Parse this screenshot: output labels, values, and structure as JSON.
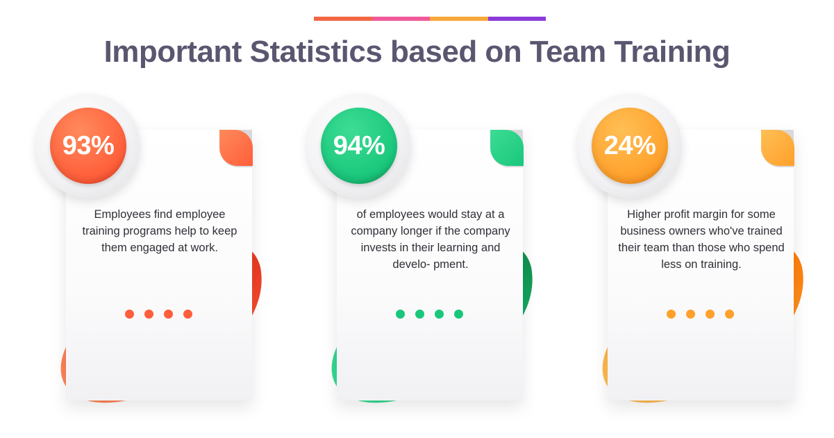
{
  "header": {
    "title": "Important Statistics based on Team Training",
    "bar_colors": [
      "#f26743",
      "#f05a9a",
      "#f7a83a",
      "#8a3bd8"
    ]
  },
  "cards": [
    {
      "percent": "93%",
      "description": "Employees find employee training programs help to keep them engaged at work.",
      "color_main": "#ff5e3a",
      "color_light": "#ff8a5c",
      "color_dark": "#e8351f",
      "dots": 4
    },
    {
      "percent": "94%",
      "description": "of employees would stay at a company longer if the company invests in their learning and develo- pment.",
      "color_main": "#19c77b",
      "color_light": "#3ddc95",
      "color_dark": "#0f8a48",
      "dots": 4
    },
    {
      "percent": "24%",
      "description": "Higher profit margin for some business owners who've trained their team than those who spend less on training.",
      "color_main": "#ffa02b",
      "color_light": "#ffbf55",
      "color_dark": "#ff7a0a",
      "dots": 4
    }
  ]
}
